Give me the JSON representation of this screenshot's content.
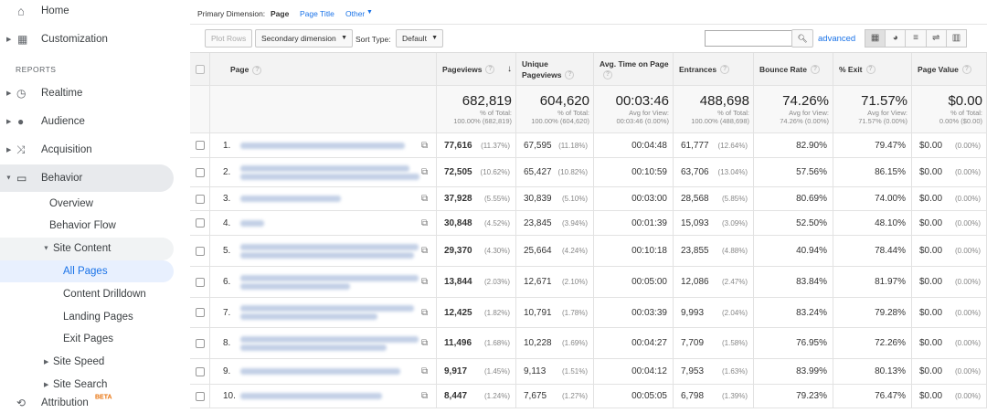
{
  "sidebar": {
    "home": "Home",
    "customization": "Customization",
    "reports": "REPORTS",
    "realtime": "Realtime",
    "audience": "Audience",
    "acquisition": "Acquisition",
    "behavior": "Behavior",
    "overview": "Overview",
    "behavior_flow": "Behavior Flow",
    "site_content": "Site Content",
    "all_pages": "All Pages",
    "content_drilldown": "Content Drilldown",
    "landing_pages": "Landing Pages",
    "exit_pages": "Exit Pages",
    "site_speed": "Site Speed",
    "site_search": "Site Search",
    "attribution": "Attribution",
    "beta": "BETA"
  },
  "toolbar": {
    "primary_label": "Primary Dimension:",
    "options": [
      "Page",
      "Page Title",
      "Other"
    ],
    "plot_rows": "Plot Rows",
    "secondary": "Secondary dimension",
    "sort_label": "Sort Type:",
    "sort_value": "Default",
    "advanced": "advanced"
  },
  "table": {
    "headers": [
      "Page",
      "Pageviews",
      "Unique Pageviews",
      "Avg. Time on Page",
      "Entrances",
      "Bounce Rate",
      "% Exit",
      "Page Value"
    ],
    "totals": [
      {
        "value": "682,819",
        "caption": "% of Total:",
        "detail": "100.00% (682,819)"
      },
      {
        "value": "604,620",
        "caption": "% of Total:",
        "detail": "100.00% (604,620)"
      },
      {
        "value": "00:03:46",
        "caption": "Avg for View:",
        "detail": "00:03:46 (0.00%)"
      },
      {
        "value": "488,698",
        "caption": "% of Total:",
        "detail": "100.00% (488,698)"
      },
      {
        "value": "74.26%",
        "caption": "Avg for View:",
        "detail": "74.26% (0.00%)"
      },
      {
        "value": "71.57%",
        "caption": "Avg for View:",
        "detail": "71.57% (0.00%)"
      },
      {
        "value": "$0.00",
        "caption": "% of Total:",
        "detail": "0.00% ($0.00)"
      }
    ],
    "rows": [
      {
        "index": "1.",
        "pageviews": "77,616",
        "pageviews_pct": "(11.37%)",
        "unique": "67,595",
        "unique_pct": "(11.18%)",
        "time": "00:04:48",
        "entrances": "61,777",
        "entrances_pct": "(12.64%)",
        "bounce": "82.90%",
        "exit": "79.47%",
        "value": "$0.00",
        "value_pct": "(0.00%)"
      },
      {
        "index": "2.",
        "pageviews": "72,505",
        "pageviews_pct": "(10.62%)",
        "unique": "65,427",
        "unique_pct": "(10.82%)",
        "time": "00:10:59",
        "entrances": "63,706",
        "entrances_pct": "(13.04%)",
        "bounce": "57.56%",
        "exit": "86.15%",
        "value": "$0.00",
        "value_pct": "(0.00%)"
      },
      {
        "index": "3.",
        "pageviews": "37,928",
        "pageviews_pct": "(5.55%)",
        "unique": "30,839",
        "unique_pct": "(5.10%)",
        "time": "00:03:00",
        "entrances": "28,568",
        "entrances_pct": "(5.85%)",
        "bounce": "80.69%",
        "exit": "74.00%",
        "value": "$0.00",
        "value_pct": "(0.00%)"
      },
      {
        "index": "4.",
        "pageviews": "30,848",
        "pageviews_pct": "(4.52%)",
        "unique": "23,845",
        "unique_pct": "(3.94%)",
        "time": "00:01:39",
        "entrances": "15,093",
        "entrances_pct": "(3.09%)",
        "bounce": "52.50%",
        "exit": "48.10%",
        "value": "$0.00",
        "value_pct": "(0.00%)"
      },
      {
        "index": "5.",
        "pageviews": "29,370",
        "pageviews_pct": "(4.30%)",
        "unique": "25,664",
        "unique_pct": "(4.24%)",
        "time": "00:10:18",
        "entrances": "23,855",
        "entrances_pct": "(4.88%)",
        "bounce": "40.94%",
        "exit": "78.44%",
        "value": "$0.00",
        "value_pct": "(0.00%)"
      },
      {
        "index": "6.",
        "pageviews": "13,844",
        "pageviews_pct": "(2.03%)",
        "unique": "12,671",
        "unique_pct": "(2.10%)",
        "time": "00:05:00",
        "entrances": "12,086",
        "entrances_pct": "(2.47%)",
        "bounce": "83.84%",
        "exit": "81.97%",
        "value": "$0.00",
        "value_pct": "(0.00%)"
      },
      {
        "index": "7.",
        "pageviews": "12,425",
        "pageviews_pct": "(1.82%)",
        "unique": "10,791",
        "unique_pct": "(1.78%)",
        "time": "00:03:39",
        "entrances": "9,993",
        "entrances_pct": "(2.04%)",
        "bounce": "83.24%",
        "exit": "79.28%",
        "value": "$0.00",
        "value_pct": "(0.00%)"
      },
      {
        "index": "8.",
        "pageviews": "11,496",
        "pageviews_pct": "(1.68%)",
        "unique": "10,228",
        "unique_pct": "(1.69%)",
        "time": "00:04:27",
        "entrances": "7,709",
        "entrances_pct": "(1.58%)",
        "bounce": "76.95%",
        "exit": "72.26%",
        "value": "$0.00",
        "value_pct": "(0.00%)"
      },
      {
        "index": "9.",
        "pageviews": "9,917",
        "pageviews_pct": "(1.45%)",
        "unique": "9,113",
        "unique_pct": "(1.51%)",
        "time": "00:04:12",
        "entrances": "7,953",
        "entrances_pct": "(1.63%)",
        "bounce": "83.99%",
        "exit": "80.13%",
        "value": "$0.00",
        "value_pct": "(0.00%)"
      },
      {
        "index": "10.",
        "pageviews": "8,447",
        "pageviews_pct": "(1.24%)",
        "unique": "7,675",
        "unique_pct": "(1.27%)",
        "time": "00:05:05",
        "entrances": "6,798",
        "entrances_pct": "(1.39%)",
        "bounce": "79.23%",
        "exit": "76.47%",
        "value": "$0.00",
        "value_pct": "(0.00%)"
      }
    ]
  }
}
